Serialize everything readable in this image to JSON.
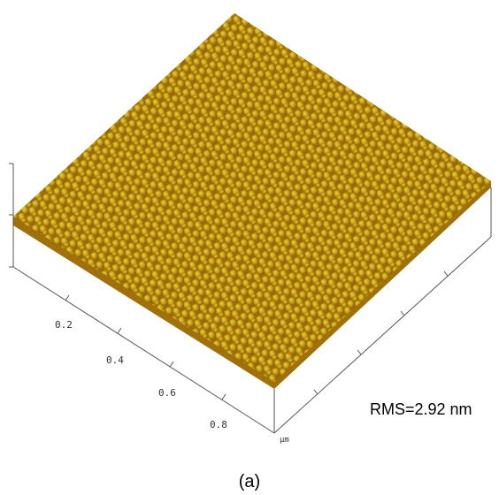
{
  "figure": {
    "x_axis": {
      "ticks": [
        "0.2",
        "0.4",
        "0.6",
        "0.8"
      ],
      "unit": "µm"
    },
    "annotation": "RMS=2.92 nm",
    "caption": "(a)"
  }
}
